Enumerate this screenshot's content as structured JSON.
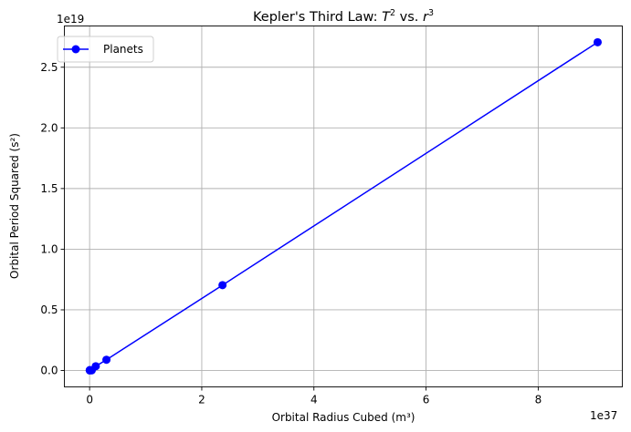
{
  "chart_data": {
    "type": "line",
    "title_main": "Kepler's Third Law: ",
    "title_t": "T",
    "title_exp1": "2",
    "title_vs": " vs. ",
    "title_r": "r",
    "title_exp2": "3",
    "xlabel": "Orbital Radius Cubed (m³)",
    "ylabel": "Orbital Period Squared (s²)",
    "x_offset_label": "1e37",
    "y_offset_label": "1e19",
    "xlim": [
      -0.45,
      9.5
    ],
    "ylim": [
      -0.135,
      2.84
    ],
    "x_ticks": [
      {
        "value": 0,
        "label": "0"
      },
      {
        "value": 2,
        "label": "2"
      },
      {
        "value": 4,
        "label": "4"
      },
      {
        "value": 6,
        "label": "6"
      },
      {
        "value": 8,
        "label": "8"
      }
    ],
    "y_ticks": [
      {
        "value": 0.0,
        "label": "0.0"
      },
      {
        "value": 0.5,
        "label": "0.5"
      },
      {
        "value": 1.0,
        "label": "1.0"
      },
      {
        "value": 1.5,
        "label": "1.5"
      },
      {
        "value": 2.0,
        "label": "2.0"
      },
      {
        "value": 2.5,
        "label": "2.5"
      }
    ],
    "grid": true,
    "legend_position": "upper-left",
    "series": [
      {
        "name": "Planets",
        "color": "#0000ff",
        "marker": "circle",
        "x": [
          0.0022,
          0.038,
          0.0036,
          0.11,
          0.3,
          2.37,
          9.06
        ],
        "y": [
          0.0006,
          0.0014,
          0.0038,
          0.0354,
          0.0887,
          0.704,
          2.706
        ]
      }
    ]
  }
}
